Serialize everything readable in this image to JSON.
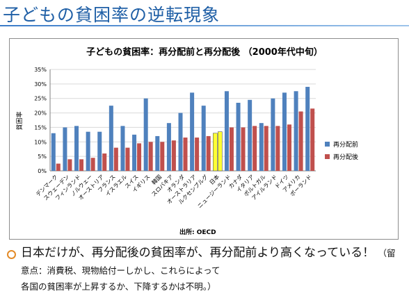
{
  "slide": {
    "title": "子どもの貧困率の逆転現象",
    "bullet_main": "日本だけが、再分配後の貧困率が、再分配前より高くなっている！",
    "bullet_note_line1": "（留意点：消費税、現物給付ーしかし、これらによって",
    "bullet_note_line2": "各国の貧困率が上昇するか、下降するかは不明。）"
  },
  "chart_data": {
    "type": "bar",
    "title": "子どもの貧困率：再分配前と再分配後 （2000年代中旬）",
    "ylabel": "貧困率",
    "source": "出所: OECD",
    "ylim": [
      0,
      35
    ],
    "yticks": [
      "0%",
      "5%",
      "10%",
      "15%",
      "20%",
      "25%",
      "30%",
      "35%"
    ],
    "legend_position": "right",
    "categories": [
      "デンマーク",
      "スウェーデン",
      "フィンランド",
      "ノルウェー",
      "オーストリア",
      "フランス",
      "イスラエル",
      "スイス",
      "イギリス",
      "韓国",
      "スロバキア",
      "オランダ",
      "オーストラリア",
      "ルクセンブルグ",
      "日本",
      "ニュージーランド",
      "カナダ",
      "イタリア",
      "ポルトガル",
      "アイルランド",
      "ドイツ",
      "アメリカ",
      "ポーランド"
    ],
    "series": [
      {
        "name": "再分配前",
        "color": "#4f81bd",
        "values": [
          13.0,
          15.0,
          15.5,
          13.5,
          13.5,
          22.5,
          15.5,
          12.5,
          25.0,
          12.0,
          16.5,
          20.0,
          27.0,
          22.5,
          13.0,
          27.5,
          23.5,
          24.5,
          16.5,
          25.0,
          27.0,
          27.5,
          29.0
        ]
      },
      {
        "name": "再分配後",
        "color": "#c0504d",
        "values": [
          2.5,
          4.0,
          4.0,
          4.5,
          6.0,
          8.0,
          8.0,
          9.5,
          10.0,
          10.0,
          10.5,
          11.5,
          11.5,
          12.0,
          13.5,
          15.0,
          15.0,
          15.5,
          15.5,
          15.5,
          16.0,
          20.5,
          21.5
        ]
      }
    ],
    "highlight": {
      "category": "日本",
      "color": "#ffff33"
    }
  }
}
